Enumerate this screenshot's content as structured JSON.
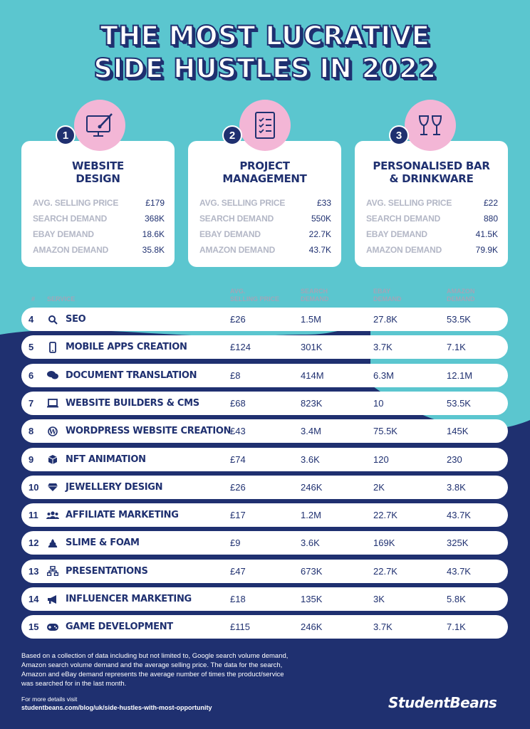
{
  "title": {
    "line1": "THE MOST LUCRATIVE",
    "line2": "SIDE HUSTLES IN 2022"
  },
  "top3": [
    {
      "rank": "1",
      "icon": "monitor-brush-icon",
      "title_line1": "WEBSITE",
      "title_line2": "DESIGN",
      "stats": [
        {
          "label": "AVG. SELLING PRICE",
          "value": "£179"
        },
        {
          "label": "SEARCH DEMAND",
          "value": "368K"
        },
        {
          "label": "EBAY DEMAND",
          "value": "18.6K"
        },
        {
          "label": "AMAZON DEMAND",
          "value": "35.8K"
        }
      ]
    },
    {
      "rank": "2",
      "icon": "checklist-icon",
      "title_line1": "PROJECT",
      "title_line2": "MANAGEMENT",
      "stats": [
        {
          "label": "AVG. SELLING PRICE",
          "value": "£33"
        },
        {
          "label": "SEARCH DEMAND",
          "value": "550K"
        },
        {
          "label": "EBAY DEMAND",
          "value": "22.7K"
        },
        {
          "label": "AMAZON DEMAND",
          "value": "43.7K"
        }
      ]
    },
    {
      "rank": "3",
      "icon": "wine-glasses-icon",
      "title_line1": "PERSONALISED BAR",
      "title_line2": "& DRINKWARE",
      "stats": [
        {
          "label": "AVG. SELLING PRICE",
          "value": "£22"
        },
        {
          "label": "SEARCH DEMAND",
          "value": "880"
        },
        {
          "label": "EBAY DEMAND",
          "value": "41.5K"
        },
        {
          "label": "AMAZON DEMAND",
          "value": "79.9K"
        }
      ]
    }
  ],
  "table": {
    "headers": {
      "rank": "#",
      "service": "SERVICE",
      "price_1": "AVG.",
      "price_2": "SELLING PRICE",
      "search_1": "SEARCH",
      "search_2": "DEMAND",
      "ebay_1": "EBAY",
      "ebay_2": "DEMAND",
      "amazon_1": "AMAZON",
      "amazon_2": "DEMAND"
    },
    "rows": [
      {
        "rank": "4",
        "icon": "search-icon",
        "service": "SEO",
        "price": "£26",
        "search": "1.5M",
        "ebay": "27.8K",
        "amazon": "53.5K"
      },
      {
        "rank": "5",
        "icon": "mobile-phone-icon",
        "service": "MOBILE APPS CREATION",
        "price": "£124",
        "search": "301K",
        "ebay": "3.7K",
        "amazon": "7.1K"
      },
      {
        "rank": "6",
        "icon": "speech-bubbles-icon",
        "service": "DOCUMENT TRANSLATION",
        "price": "£8",
        "search": "414M",
        "ebay": "6.3M",
        "amazon": "12.1M"
      },
      {
        "rank": "7",
        "icon": "laptop-code-icon",
        "service": "WEBSITE BUILDERS & CMS",
        "price": "£68",
        "search": "823K",
        "ebay": "10",
        "amazon": "53.5K"
      },
      {
        "rank": "8",
        "icon": "wordpress-icon",
        "service": "WORDPRESS WEBSITE CREATION",
        "price": "£43",
        "search": "3.4M",
        "ebay": "75.5K",
        "amazon": "145K"
      },
      {
        "rank": "9",
        "icon": "cube-icon",
        "service": "NFT ANIMATION",
        "price": "£74",
        "search": "3.6K",
        "ebay": "120",
        "amazon": "230"
      },
      {
        "rank": "10",
        "icon": "gem-icon",
        "service": "JEWELLERY DESIGN",
        "price": "£26",
        "search": "246K",
        "ebay": "2K",
        "amazon": "3.8K"
      },
      {
        "rank": "11",
        "icon": "users-icon",
        "service": "AFFILIATE MARKETING",
        "price": "£17",
        "search": "1.2M",
        "ebay": "22.7K",
        "amazon": "43.7K"
      },
      {
        "rank": "12",
        "icon": "slime-icon",
        "service": "SLIME & FOAM",
        "price": "£9",
        "search": "3.6K",
        "ebay": "169K",
        "amazon": "325K"
      },
      {
        "rank": "13",
        "icon": "sitemap-icon",
        "service": "PRESENTATIONS",
        "price": "£47",
        "search": "673K",
        "ebay": "22.7K",
        "amazon": "43.7K"
      },
      {
        "rank": "14",
        "icon": "megaphone-icon",
        "service": "INFLUENCER MARKETING",
        "price": "£18",
        "search": "135K",
        "ebay": "3K",
        "amazon": "5.8K"
      },
      {
        "rank": "15",
        "icon": "gamepad-icon",
        "service": "GAME DEVELOPMENT",
        "price": "£115",
        "search": "246K",
        "ebay": "3.7K",
        "amazon": "7.1K"
      }
    ]
  },
  "footer": {
    "note_1": "Based on a collection of data including but not limited to, Google search volume demand,",
    "note_2": "Amazon search volume demand and the average selling price. The data for the search,",
    "note_3": "Amazon and eBay demand represents the average number of times the product/service",
    "note_4": "was searched for in the last month.",
    "more_label": "For more details visit",
    "url": "studentbeans.com/blog/uk/side-hustles-with-most-opportunity",
    "logo": "StudentBeans"
  },
  "colors": {
    "teal": "#5bc6cf",
    "navy": "#1f3070",
    "pink": "#f3b6d6",
    "grey_label": "#b3b7c6"
  }
}
